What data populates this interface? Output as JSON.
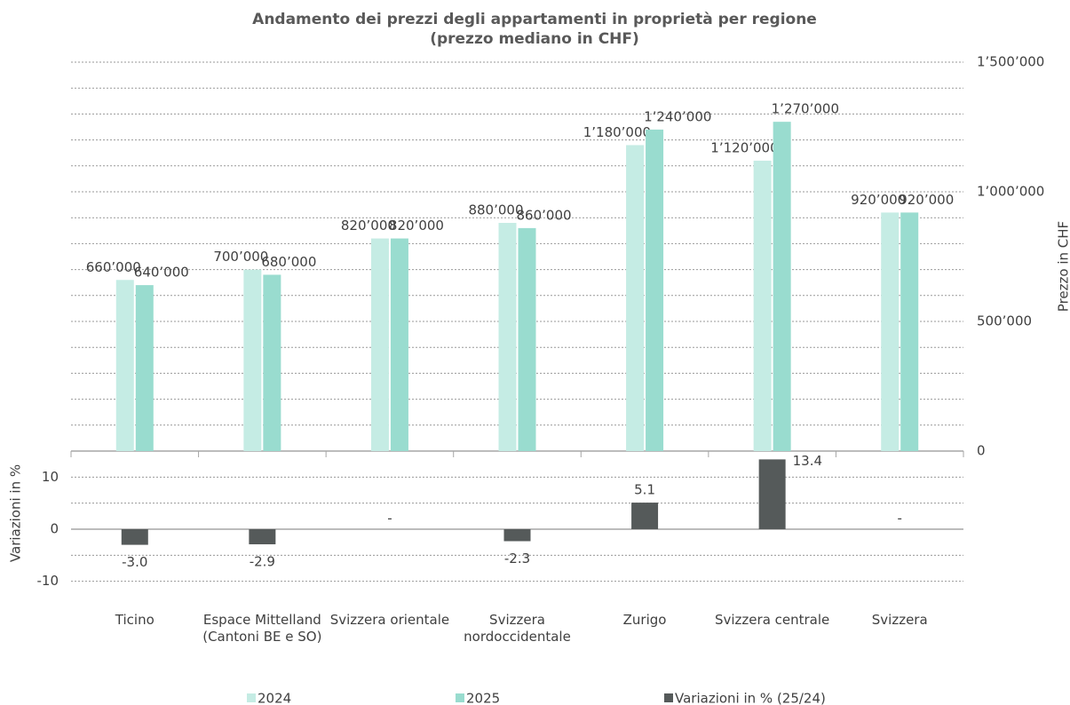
{
  "chart_data": [
    {
      "type": "bar",
      "title": "Andamento dei prezzi degli appartamenti in proprietà per regione",
      "subtitle": "(prezzo mediano in CHF)",
      "y_label": "Prezzo in CHF",
      "ylim": [
        0,
        1500000
      ],
      "yticks": [
        0,
        {
          "value": 500000,
          "label": "500’000"
        },
        {
          "value": 1000000,
          "label": "1’000’000"
        },
        {
          "value": 1500000,
          "label": "1’500’000"
        }
      ],
      "minor_yticks": [
        100000,
        200000,
        300000,
        400000,
        600000,
        700000,
        800000,
        900000,
        1100000,
        1200000,
        1300000,
        1400000
      ],
      "grid": true,
      "series": [
        {
          "name": "2024",
          "color": "#c5ece4",
          "values": [
            660000,
            700000,
            820000,
            880000,
            1180000,
            1120000,
            920000
          ],
          "value_labels": [
            "660’000",
            "700’000",
            "820’000",
            "880’000",
            "1’180’000",
            "1’120’000",
            "920’000"
          ]
        },
        {
          "name": "2025",
          "color": "#99dccf",
          "values": [
            640000,
            680000,
            820000,
            860000,
            1240000,
            1270000,
            920000
          ],
          "value_labels": [
            "640’000",
            "680’000",
            "820’000",
            "860’000",
            "1’240’000",
            "1’270’000",
            "920’000"
          ]
        }
      ]
    },
    {
      "type": "bar",
      "y_label": "Variazioni in %",
      "categories": [
        "Ticino",
        "Espace Mittelland (Cantoni BE e SO)",
        "Svizzera orientale",
        "Svizzera nordoccidentale",
        "Zurigo",
        "Svizzera centrale",
        "Svizzera"
      ],
      "ylim": [
        -15,
        15
      ],
      "yticks": [
        -10,
        0,
        10
      ],
      "minor_yticks": [
        -5,
        5
      ],
      "grid": true,
      "series": [
        {
          "name": "Variazioni in % (25/24)",
          "color": "#555a5a",
          "values": [
            -3.0,
            -2.9,
            null,
            -2.3,
            5.1,
            13.4,
            null
          ],
          "value_labels": [
            "-3.0",
            "-2.9",
            "-",
            "-2.3",
            "5.1",
            "13.4",
            "-"
          ]
        }
      ]
    }
  ]
}
